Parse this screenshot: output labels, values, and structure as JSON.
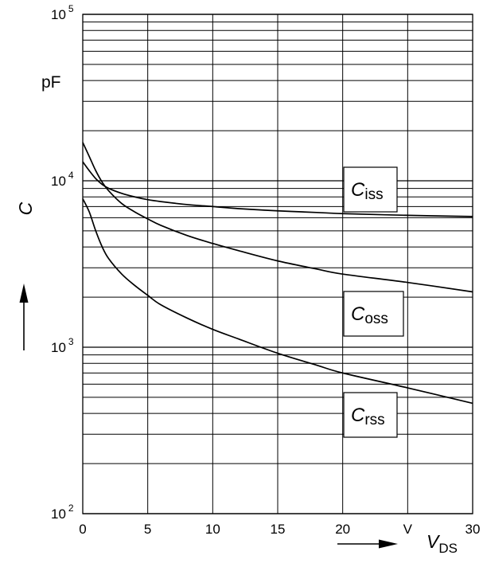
{
  "chart_data": {
    "type": "line",
    "title": "",
    "x_scale": "linear",
    "y_scale": "log",
    "xlim": [
      0,
      30
    ],
    "ylim": [
      100,
      100000
    ],
    "x_ticks": [
      0,
      5,
      10,
      15,
      20,
      25,
      30
    ],
    "x_tick_labels": [
      "0",
      "5",
      "10",
      "15",
      "20",
      "V",
      "30"
    ],
    "y_tick_labels": [
      {
        "value": 100,
        "base": "10",
        "exp": "2"
      },
      {
        "value": 1000,
        "base": "10",
        "exp": "3"
      },
      {
        "value": 10000,
        "base": "10",
        "exp": "4"
      },
      {
        "value": 100000,
        "base": "10",
        "exp": "5"
      }
    ],
    "y_unit_label": "pF",
    "ylabel": "C",
    "xlabel": {
      "main": "V",
      "sub": "DS"
    },
    "grid": true,
    "series": [
      {
        "name": "Ciss",
        "label": {
          "main": "C",
          "sub": "iss"
        },
        "x": [
          0,
          0.5,
          1,
          1.5,
          2,
          3,
          4,
          5,
          6,
          8,
          10,
          12,
          15,
          18,
          20,
          25,
          30
        ],
        "y": [
          13000,
          11500,
          10300,
          9500,
          9000,
          8400,
          8000,
          7700,
          7500,
          7200,
          7000,
          6800,
          6600,
          6450,
          6350,
          6200,
          6100
        ]
      },
      {
        "name": "Coss",
        "label": {
          "main": "C",
          "sub": "oss"
        },
        "x": [
          0,
          0.5,
          1,
          1.5,
          2,
          3,
          4,
          5,
          6,
          8,
          10,
          12,
          15,
          18,
          20,
          25,
          30
        ],
        "y": [
          17000,
          14000,
          11500,
          9800,
          8700,
          7300,
          6500,
          5900,
          5400,
          4700,
          4200,
          3800,
          3300,
          2950,
          2750,
          2450,
          2150
        ]
      },
      {
        "name": "Crss",
        "label": {
          "main": "C",
          "sub": "rss"
        },
        "x": [
          0,
          0.5,
          1,
          1.5,
          2,
          3,
          4,
          5,
          6,
          8,
          10,
          12,
          15,
          18,
          20,
          25,
          30
        ],
        "y": [
          7800,
          6500,
          5000,
          4000,
          3400,
          2750,
          2350,
          2050,
          1800,
          1500,
          1280,
          1120,
          920,
          780,
          700,
          570,
          460
        ]
      }
    ]
  }
}
